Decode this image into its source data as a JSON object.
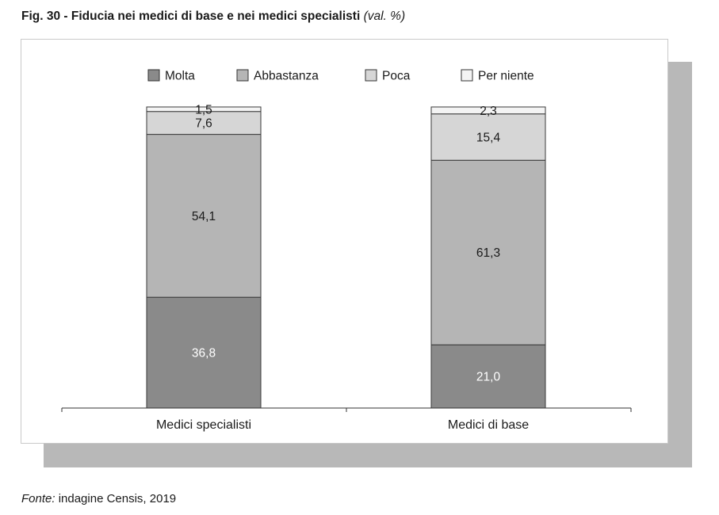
{
  "title": "Fig. 30 - Fiducia nei medici di base e nei medici specialisti",
  "subtitle": "(val. %)",
  "source_label": "Fonte:",
  "source_text": " indagine Censis, 2019",
  "colors": {
    "Molta": "#8a8a8a",
    "Abbastanza": "#b5b5b5",
    "Poca": "#d6d6d6",
    "Per niente": "#f4f4f4"
  },
  "chart_data": {
    "type": "bar",
    "stacked": true,
    "title": "Fig. 30 - Fiducia nei medici di base e nei medici specialisti",
    "subtitle": "(val. %)",
    "categories": [
      "Medici specialisti",
      "Medici di base"
    ],
    "series": [
      {
        "name": "Molta",
        "values": [
          36.8,
          21.0
        ],
        "labels": [
          "36,8",
          "21,0"
        ]
      },
      {
        "name": "Abbastanza",
        "values": [
          54.1,
          61.3
        ],
        "labels": [
          "54,1",
          "61,3"
        ]
      },
      {
        "name": "Poca",
        "values": [
          7.6,
          15.4
        ],
        "labels": [
          "7,6",
          "15,4"
        ]
      },
      {
        "name": "Per niente",
        "values": [
          1.5,
          2.3
        ],
        "labels": [
          "1,5",
          "2,3"
        ]
      }
    ],
    "ylim": [
      0,
      100
    ],
    "legend_position": "top",
    "grid": false
  }
}
